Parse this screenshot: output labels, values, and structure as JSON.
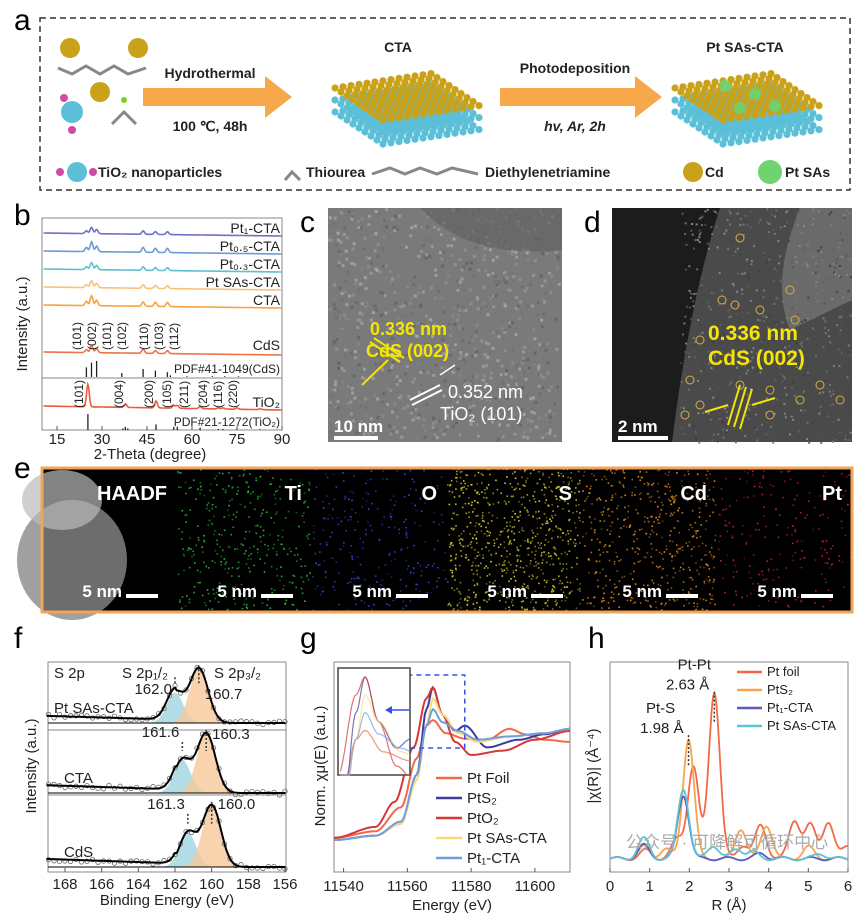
{
  "panels": {
    "a": "a",
    "b": "b",
    "c": "c",
    "d": "d",
    "e": "e",
    "f": "f",
    "g": "g",
    "h": "h"
  },
  "scheme": {
    "step1_top": "Hydrothermal",
    "step1_bottom": "100 ℃, 48h",
    "step2_top": "Photodeposition",
    "step2_bottom": "hv, Ar, 2h",
    "product1": "CTA",
    "product2": "Pt SAs-CTA",
    "legend": [
      "TiO₂ nanoparticles",
      "Thiourea",
      "Diethylenetriamine",
      "Cd",
      "Pt SAs"
    ],
    "colors": {
      "arrow": "#f7a84a",
      "Cd": "#c9a21a",
      "TiO2": "#5bbfd8",
      "O": "#d24aa8",
      "PtSAs": "#6fd36f"
    }
  },
  "tem_c": {
    "spacing1": "0.336 nm",
    "plane1": "CdS (002)",
    "spacing2": "0.352 nm",
    "plane2": "TiO₂ (101)",
    "scalebar": "10 nm"
  },
  "haadf_d": {
    "spacing": "0.336 nm",
    "plane": "CdS (002)",
    "scalebar": "2 nm"
  },
  "mapping_e": {
    "channels": [
      {
        "name": "HAADF",
        "scalebar": "5 nm",
        "color": "#ffffff"
      },
      {
        "name": "Ti",
        "scalebar": "5 nm",
        "color": "#2fbf3a"
      },
      {
        "name": "O",
        "scalebar": "5 nm",
        "color": "#3a4ad8"
      },
      {
        "name": "S",
        "scalebar": "5 nm",
        "color": "#d8d030"
      },
      {
        "name": "Cd",
        "scalebar": "5 nm",
        "color": "#e58a1e"
      },
      {
        "name": "Pt",
        "scalebar": "5 nm",
        "color": "#d0203a"
      }
    ]
  },
  "chart_data": [
    {
      "panel": "b",
      "type": "line",
      "xlabel": "2-Theta (degree)",
      "ylabel": "Intensity (a.u.)",
      "xlim": [
        10,
        90
      ],
      "xticks": [
        15,
        30,
        45,
        60,
        75,
        90
      ],
      "series": [
        {
          "name": "Pt₁-CTA",
          "color": "#6f72c4",
          "peaks": [
            [
              24.8,
              0.2
            ],
            [
              26.5,
              0.45
            ],
            [
              28.2,
              0.3
            ],
            [
              43.7,
              0.25
            ],
            [
              47.8,
              0.2
            ],
            [
              51.8,
              0.2
            ]
          ]
        },
        {
          "name": "Pt₀.₅-CTA",
          "color": "#6a9bd6",
          "peaks": [
            [
              24.8,
              0.3
            ],
            [
              26.5,
              0.7
            ],
            [
              28.2,
              0.4
            ],
            [
              43.7,
              0.35
            ],
            [
              47.8,
              0.3
            ],
            [
              51.8,
              0.3
            ]
          ]
        },
        {
          "name": "Pt₀.₃-CTA",
          "color": "#5cc0d0",
          "peaks": [
            [
              24.8,
              0.2
            ],
            [
              26.5,
              0.5
            ],
            [
              28.2,
              0.3
            ],
            [
              43.7,
              0.25
            ],
            [
              47.8,
              0.2
            ],
            [
              51.8,
              0.2
            ]
          ]
        },
        {
          "name": "Pt SAs-CTA",
          "color": "#f9c17a",
          "peaks": [
            [
              24.8,
              0.2
            ],
            [
              26.5,
              0.5
            ],
            [
              28.2,
              0.3
            ],
            [
              43.7,
              0.25
            ],
            [
              47.8,
              0.2
            ],
            [
              51.8,
              0.2
            ]
          ]
        },
        {
          "name": "CTA",
          "color": "#f7a440",
          "peaks": [
            [
              24.8,
              0.3
            ],
            [
              26.5,
              0.7
            ],
            [
              28.2,
              0.4
            ],
            [
              43.7,
              0.3
            ],
            [
              47.8,
              0.3
            ],
            [
              51.8,
              0.3
            ]
          ]
        },
        {
          "name": "CdS",
          "color": "#f0724a",
          "peaks": [
            [
              24.8,
              0.2
            ],
            [
              26.5,
              0.5
            ],
            [
              28.2,
              0.3
            ],
            [
              43.7,
              0.3
            ],
            [
              47.8,
              0.2
            ],
            [
              51.8,
              0.2
            ]
          ]
        },
        {
          "name": "TiO₂",
          "color": "#ee5a3c",
          "peaks": [
            [
              25.3,
              1.6
            ],
            [
              37.8,
              0.25
            ],
            [
              48.0,
              0.5
            ],
            [
              53.9,
              0.2
            ],
            [
              55.1,
              0.2
            ],
            [
              62.7,
              0.15
            ],
            [
              68.8,
              0.08
            ],
            [
              70.3,
              0.08
            ],
            [
              75.0,
              0.1
            ],
            [
              82.7,
              0.06
            ]
          ]
        }
      ],
      "cds_hkl": [
        [
          "(101)",
          24.8
        ],
        [
          "(002)",
          26.5
        ],
        [
          "(101)",
          28.2
        ],
        [
          "(102)",
          36.6
        ],
        [
          "(110)",
          43.7
        ],
        [
          "(103)",
          47.8
        ],
        [
          "(112)",
          51.8
        ]
      ],
      "tio2_hkl": [
        [
          "(101)",
          25.3
        ],
        [
          "(004)",
          37.8
        ],
        [
          "(200)",
          48.0
        ],
        [
          "(105)",
          53.9
        ],
        [
          "(211)",
          55.1
        ],
        [
          "(204)",
          62.7
        ],
        [
          "(116)",
          68.8
        ],
        [
          "(220)",
          70.3
        ]
      ],
      "references": [
        {
          "name": "PDF#41-1049(CdS)",
          "lines": [
            [
              24.8,
              0.6
            ],
            [
              26.5,
              0.9
            ],
            [
              28.2,
              1
            ],
            [
              36.6,
              0.25
            ],
            [
              43.7,
              0.5
            ],
            [
              47.8,
              0.4
            ],
            [
              51.8,
              0.3
            ],
            [
              52.8,
              0.1
            ],
            [
              58.3,
              0.05
            ],
            [
              66.8,
              0.05
            ],
            [
              70.9,
              0.05
            ],
            [
              75.5,
              0.05
            ]
          ]
        },
        {
          "name": "PDF#21-1272(TiO₂)",
          "lines": [
            [
              25.3,
              1
            ],
            [
              37.0,
              0.1
            ],
            [
              37.8,
              0.2
            ],
            [
              38.6,
              0.1
            ],
            [
              48.0,
              0.35
            ],
            [
              53.9,
              0.2
            ],
            [
              55.1,
              0.2
            ],
            [
              62.7,
              0.15
            ],
            [
              68.8,
              0.06
            ],
            [
              70.3,
              0.07
            ],
            [
              75.0,
              0.1
            ],
            [
              82.7,
              0.05
            ]
          ]
        }
      ]
    },
    {
      "panel": "f",
      "type": "line",
      "xlabel": "Binding Energy (eV)",
      "ylabel": "Intensity (a.u.)",
      "xlim": [
        169,
        156
      ],
      "xticks": [
        168,
        166,
        164,
        162,
        160,
        158,
        156
      ],
      "title": "S 2p",
      "peak_labels": [
        "S 2p₁/₂",
        "S 2p₃/₂"
      ],
      "series": [
        {
          "name": "Pt SAs-CTA",
          "s2p12": {
            "pos": 162.0,
            "label": "162.0"
          },
          "s2p32": {
            "pos": 160.7,
            "label": "160.7"
          }
        },
        {
          "name": "CTA",
          "s2p12": {
            "pos": 161.6,
            "label": "161.6"
          },
          "s2p32": {
            "pos": 160.3,
            "label": "160.3"
          }
        },
        {
          "name": "CdS",
          "s2p12": {
            "pos": 161.3,
            "label": "161.3"
          },
          "s2p32": {
            "pos": 160.0,
            "label": "160.0"
          }
        }
      ],
      "colors": {
        "s2p12": "#9fd3e0",
        "s2p32": "#f6c89a"
      }
    },
    {
      "panel": "g",
      "type": "line",
      "xlabel": "Energy (eV)",
      "ylabel": "Norm. χμ(E) (a.u.)",
      "xlim": [
        11537,
        11611
      ],
      "xticks": [
        11540,
        11560,
        11580,
        11600
      ],
      "legend": "bottom-right",
      "series": [
        {
          "name": "Pt Foil",
          "color": "#f26a45",
          "points": [
            [
              11537,
              0.02
            ],
            [
              11550,
              0.08
            ],
            [
              11558,
              0.3
            ],
            [
              11563,
              0.75
            ],
            [
              11566,
              1.05
            ],
            [
              11568,
              1.1
            ],
            [
              11572,
              0.98
            ],
            [
              11578,
              0.93
            ],
            [
              11585,
              0.92
            ],
            [
              11592,
              1.02
            ],
            [
              11597,
              0.97
            ],
            [
              11603,
              0.92
            ],
            [
              11611,
              0.9
            ]
          ]
        },
        {
          "name": "PtS₂",
          "color": "#3d3c9a",
          "points": [
            [
              11537,
              0.0
            ],
            [
              11550,
              0.04
            ],
            [
              11558,
              0.15
            ],
            [
              11563,
              0.6
            ],
            [
              11566,
              1.2
            ],
            [
              11568,
              1.4
            ],
            [
              11571,
              1.15
            ],
            [
              11575,
              1.0
            ],
            [
              11578,
              1.05
            ],
            [
              11585,
              0.85
            ],
            [
              11595,
              0.92
            ],
            [
              11603,
              0.97
            ],
            [
              11611,
              1.02
            ]
          ]
        },
        {
          "name": "PtO₂",
          "color": "#d9363a",
          "points": [
            [
              11537,
              0.02
            ],
            [
              11550,
              0.12
            ],
            [
              11556,
              0.35
            ],
            [
              11562,
              0.85
            ],
            [
              11566,
              1.3
            ],
            [
              11568,
              1.4
            ],
            [
              11571,
              1.15
            ],
            [
              11575,
              0.9
            ],
            [
              11580,
              0.78
            ],
            [
              11590,
              0.82
            ],
            [
              11600,
              0.92
            ],
            [
              11611,
              1.0
            ]
          ]
        },
        {
          "name": "Pt SAs-CTA",
          "color": "#fcd978",
          "points": [
            [
              11537,
              0.0
            ],
            [
              11550,
              0.04
            ],
            [
              11558,
              0.15
            ],
            [
              11563,
              0.55
            ],
            [
              11566,
              1.05
            ],
            [
              11568,
              1.3
            ],
            [
              11571,
              1.15
            ],
            [
              11576,
              0.98
            ],
            [
              11582,
              0.9
            ],
            [
              11592,
              0.95
            ],
            [
              11603,
              0.98
            ],
            [
              11611,
              1.02
            ]
          ]
        },
        {
          "name": "Pt₁-CTA",
          "color": "#6f9ede",
          "points": [
            [
              11537,
              0.0
            ],
            [
              11550,
              0.04
            ],
            [
              11558,
              0.17
            ],
            [
              11563,
              0.6
            ],
            [
              11566,
              1.05
            ],
            [
              11568,
              1.2
            ],
            [
              11571,
              1.08
            ],
            [
              11576,
              1.0
            ],
            [
              11582,
              0.92
            ],
            [
              11592,
              0.95
            ],
            [
              11603,
              0.98
            ],
            [
              11611,
              1.02
            ]
          ]
        }
      ]
    },
    {
      "panel": "h",
      "type": "line",
      "xlabel": "R (Å)",
      "ylabel": "|χ(R)| (Å⁻⁴)",
      "xlim": [
        0,
        6
      ],
      "xticks": [
        0,
        1,
        2,
        3,
        4,
        5,
        6
      ],
      "legend": "top-right",
      "annotations": [
        {
          "label": "Pt-Pt",
          "value": "2.63 Å",
          "x": 2.63
        },
        {
          "label": "Pt-S",
          "value": "1.98 Å",
          "x": 1.98
        }
      ],
      "series": [
        {
          "name": "Pt foil",
          "color": "#f26a45",
          "peaks": [
            [
              0.9,
              0.05
            ],
            [
              1.7,
              0.12
            ],
            [
              2.1,
              0.55
            ],
            [
              2.63,
              1.0
            ],
            [
              3.35,
              0.08
            ],
            [
              3.8,
              0.2
            ],
            [
              4.65,
              0.23
            ],
            [
              5.05,
              0.2
            ],
            [
              5.5,
              0.22
            ],
            [
              6.0,
              0.08
            ]
          ]
        },
        {
          "name": "PtS₂",
          "color": "#f9a34a",
          "peaks": [
            [
              0.85,
              0.07
            ],
            [
              1.4,
              0.06
            ],
            [
              1.98,
              0.72
            ],
            [
              3.3,
              0.18
            ],
            [
              3.95,
              0.2
            ],
            [
              5.0,
              0.07
            ]
          ]
        },
        {
          "name": "Pt₁-CTA",
          "color": "#5a5cc0",
          "peaks": [
            [
              0.85,
              0.08
            ],
            [
              1.85,
              0.38
            ],
            [
              3.8,
              0.03
            ]
          ]
        },
        {
          "name": "Pt SAs-CTA",
          "color": "#5cc4d4",
          "peaks": [
            [
              0.85,
              0.12
            ],
            [
              1.85,
              0.42
            ],
            [
              2.6,
              0.08
            ],
            [
              3.2,
              0.06
            ],
            [
              3.6,
              0.04
            ],
            [
              5.3,
              0.03
            ]
          ]
        }
      ]
    }
  ],
  "watermark": "公众号 · 可降解可循环中心"
}
